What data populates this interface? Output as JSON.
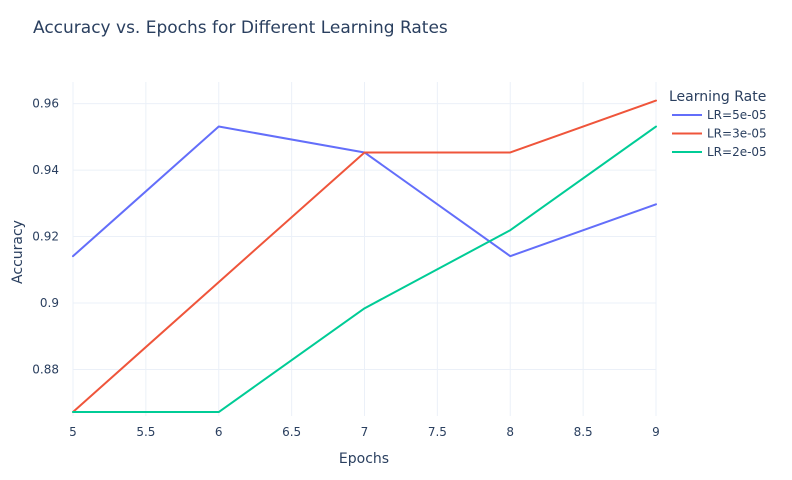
{
  "chart_data": {
    "type": "line",
    "title": "Accuracy vs. Epochs for Different Learning Rates",
    "xlabel": "Epochs",
    "ylabel": "Accuracy",
    "x": [
      5,
      6,
      7,
      8,
      9
    ],
    "xlim": [
      5,
      9
    ],
    "ylim": [
      0.866,
      0.9665
    ],
    "x_ticks": [
      5,
      5.5,
      6,
      6.5,
      7,
      7.5,
      8,
      8.5,
      9
    ],
    "x_tick_labels": [
      "5",
      "5.5",
      "6",
      "6.5",
      "7",
      "7.5",
      "8",
      "8.5",
      "9"
    ],
    "y_ticks": [
      0.88,
      0.9,
      0.92,
      0.94,
      0.96
    ],
    "y_tick_labels": [
      "0.88",
      "0.9",
      "0.92",
      "0.94",
      "0.96"
    ],
    "grid": true,
    "legend": {
      "title": "Learning Rate",
      "placement": "top-right outside"
    },
    "series": [
      {
        "name": "LR=5e-05",
        "color": "#636efa",
        "values": [
          0.9141,
          0.9531,
          0.9453,
          0.9141,
          0.9297
        ]
      },
      {
        "name": "LR=3e-05",
        "color": "#ef553b",
        "values": [
          0.8672,
          0.9063,
          0.9453,
          0.9453,
          0.9609
        ]
      },
      {
        "name": "LR=2e-05",
        "color": "#00cc96",
        "values": [
          0.8672,
          0.8672,
          0.8984,
          0.9219,
          0.9531
        ]
      }
    ]
  }
}
